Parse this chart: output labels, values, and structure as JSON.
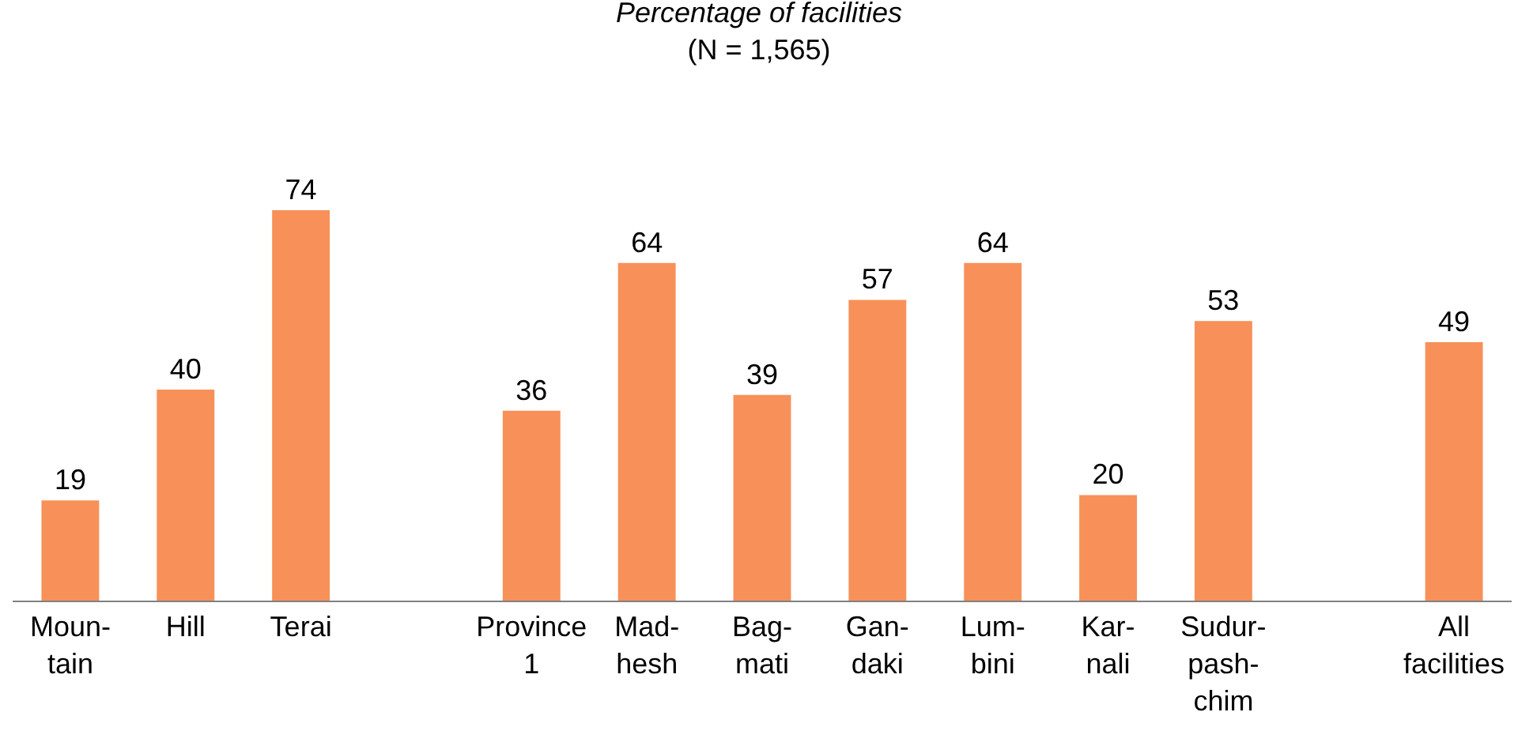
{
  "chart_data": {
    "type": "bar",
    "title": "Percentage of facilities",
    "subtitle": "(N = 1,565)",
    "categories": [
      "Moun-\ntain",
      "Hill",
      "Terai",
      null,
      "Province\n1",
      "Mad-\nhesh",
      "Bag-\nmati",
      "Gan-\ndaki",
      "Lum-\nbini",
      "Kar-\nnali",
      "Sudur-\npash-\nchim",
      null,
      "All\nfacilities"
    ],
    "values": [
      19,
      40,
      74,
      null,
      36,
      64,
      39,
      57,
      64,
      20,
      53,
      null,
      49
    ],
    "color": "#f79159",
    "data_labels": true,
    "grid": false,
    "legend": false
  }
}
